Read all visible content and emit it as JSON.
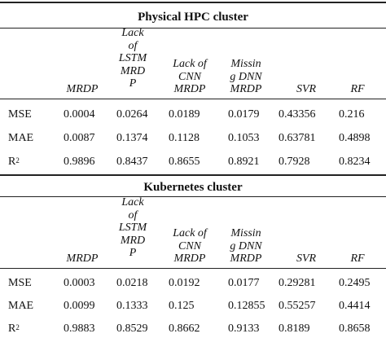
{
  "sections": [
    {
      "title": "Physical HPC cluster",
      "headers": [
        {
          "lines": [
            "MRDP"
          ]
        },
        {
          "lines": [
            "Lack",
            "of",
            "LSTM",
            "MRD",
            "P"
          ]
        },
        {
          "lines": [
            "Lack of",
            "CNN",
            "MRDP"
          ]
        },
        {
          "lines": [
            "Missin",
            "g DNN",
            "MRDP"
          ]
        },
        {
          "lines": [
            "SVR"
          ]
        },
        {
          "lines": [
            "RF"
          ]
        }
      ],
      "rows": [
        {
          "label": "MSE",
          "values": [
            "0.0004",
            "0.0264",
            "0.0189",
            "0.0179",
            "0.43356",
            "0.216"
          ]
        },
        {
          "label": "MAE",
          "values": [
            "0.0087",
            "0.1374",
            "0.1128",
            "0.1053",
            "0.63781",
            "0.4898"
          ]
        },
        {
          "label": "R",
          "sup": "2",
          "values": [
            "0.9896",
            "0.8437",
            "0.8655",
            "0.8921",
            "0.7928",
            "0.8234"
          ]
        }
      ]
    },
    {
      "title": "Kubernetes cluster",
      "headers": [
        {
          "lines": [
            "MRDP"
          ]
        },
        {
          "lines": [
            "Lack",
            "of",
            "LSTM",
            "MRD",
            "P"
          ]
        },
        {
          "lines": [
            "Lack of",
            "CNN",
            "MRDP"
          ]
        },
        {
          "lines": [
            "Missin",
            "g DNN",
            "MRDP"
          ]
        },
        {
          "lines": [
            "SVR"
          ]
        },
        {
          "lines": [
            "RF"
          ]
        }
      ],
      "rows": [
        {
          "label": "MSE",
          "values": [
            "0.0003",
            "0.0218",
            "0.0192",
            "0.0177",
            "0.29281",
            "0.2495"
          ]
        },
        {
          "label": "MAE",
          "values": [
            "0.0099",
            "0.1333",
            "0.125",
            "0.12855",
            "0.55257",
            "0.4414"
          ]
        },
        {
          "label": "R",
          "sup": "2",
          "values": [
            "0.9883",
            "0.8529",
            "0.8662",
            "0.9133",
            "0.8189",
            "0.8658"
          ]
        }
      ]
    }
  ]
}
